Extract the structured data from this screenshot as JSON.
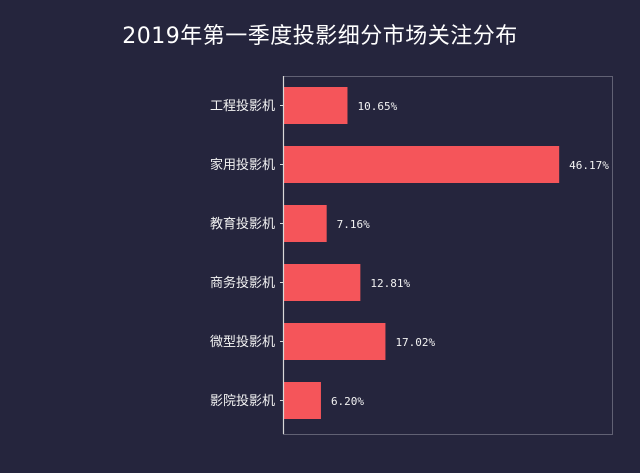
{
  "colors": {
    "background": "#25253d",
    "bar": "#f5555a",
    "text": "#f2f2f2",
    "axis": "#d8d8d8",
    "frame": "#8a8a9a"
  },
  "chart_data": {
    "type": "bar",
    "orientation": "horizontal",
    "title": "2019年第一季度投影细分市场关注分布",
    "xlabel": "",
    "ylabel": "",
    "xlim": [
      0,
      50
    ],
    "grid": false,
    "legend": "none",
    "categories": [
      "工程投影机",
      "家用投影机",
      "教育投影机",
      "商务投影机",
      "微型投影机",
      "影院投影机"
    ],
    "values": [
      10.65,
      46.17,
      7.16,
      12.81,
      17.02,
      6.2
    ],
    "value_labels": [
      "10.65%",
      "46.17%",
      "7.16%",
      "12.81%",
      "17.02%",
      "6.20%"
    ]
  }
}
